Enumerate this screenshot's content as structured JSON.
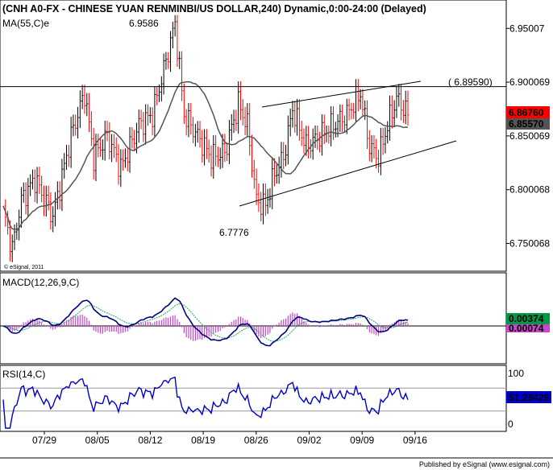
{
  "header": {
    "title": "(CNH A0-FX - CHINESE YUAN RENMINBI/US DOLLAR,240) Dynamic,0:00-24:00 (Delayed)",
    "ma_label": "MA(55,C)e",
    "copyright": "© eSignal, 2011"
  },
  "footer": {
    "published": "Published by eSignal (www.esignal.com)"
  },
  "colors": {
    "up": "#000000",
    "down": "#ff0000",
    "ma": "#555555",
    "macd": "#000080",
    "signal": "#22aa66",
    "hist": "#cc44cc",
    "rsi": "#0000cc",
    "tag_red": "#ff0000",
    "tag_green": "#009944",
    "tag_blue": "#0000cc"
  },
  "chart_data": [
    {
      "type": "candlestick",
      "panel": "price",
      "ylim": [
        6.725,
        6.975
      ],
      "yticks": [
        6.75007,
        6.800068,
        6.850069,
        6.900069,
        6.95007
      ],
      "ytick_labels": [
        "6.750068",
        "6.800068",
        "6.850069",
        "6.900069",
        "6.95007"
      ],
      "xtick_labels": [
        "07/29",
        "08/05",
        "08/12",
        "08/19",
        "08/26",
        "09/02",
        "09/09",
        "09/16"
      ],
      "annotations": {
        "high_label": "6.9586",
        "high_value": 6.9586,
        "low_label": "6.7776",
        "low_value": 6.7776,
        "resistance_label": "( 6.89590)",
        "resistance_value": 6.8959
      },
      "last_price": "6.86760",
      "ma_last": "6.85570",
      "ma_period": 55
    },
    {
      "type": "line",
      "panel": "macd",
      "title": "MACD(12,26,9,C)",
      "last_macd": "0.00374",
      "last_hist": "0.00074"
    },
    {
      "type": "line",
      "panel": "rsi",
      "title": "RSI(14,C)",
      "ylim": [
        0,
        100
      ],
      "ytick_labels": [
        "100",
        "0"
      ],
      "levels": [
        70,
        30
      ],
      "last": "51.28429"
    }
  ]
}
